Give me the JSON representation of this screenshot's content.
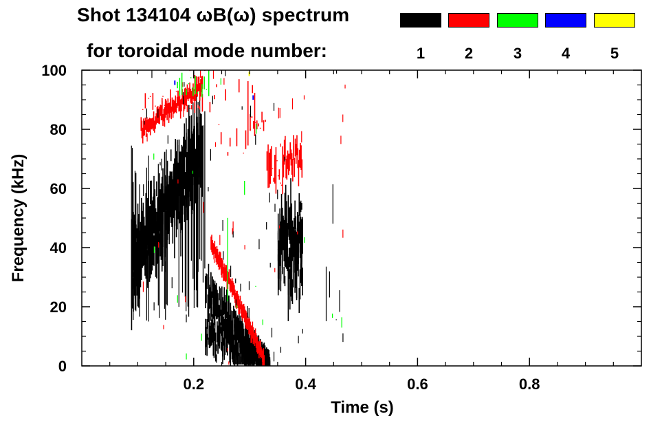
{
  "chart_data": {
    "type": "heatmap",
    "title_line1": "Shot 134104 ωB(ω) spectrum",
    "title_line2": "for toroidal mode number:",
    "xlabel": "Time (s)",
    "ylabel": "Frequency (kHz)",
    "xlim": [
      0.0,
      1.0
    ],
    "ylim": [
      0,
      100
    ],
    "x_ticks": [
      0.2,
      0.4,
      0.6,
      0.8
    ],
    "y_ticks": [
      0,
      20,
      40,
      60,
      80,
      100
    ],
    "legend": [
      {
        "mode": "1",
        "color": "#000000"
      },
      {
        "mode": "2",
        "color": "#ff0000"
      },
      {
        "mode": "3",
        "color": "#00ff00"
      },
      {
        "mode": "4",
        "color": "#0000ff"
      },
      {
        "mode": "5",
        "color": "#ffff00"
      }
    ],
    "regions": [
      {
        "mode": 1,
        "t": [
          0.09,
          0.21
        ],
        "f_low": 15,
        "f_high": 75,
        "note": "broadband, peak ~55-65 kHz"
      },
      {
        "mode": 2,
        "t": [
          0.11,
          0.2
        ],
        "f_low": 80,
        "f_high": 95,
        "note": "chirp ~80 to ~95 kHz"
      },
      {
        "mode": 1,
        "t": [
          0.22,
          0.33
        ],
        "f_low": 0,
        "f_high": 35,
        "note": "sweep ~30 down to ~2 kHz"
      },
      {
        "mode": 2,
        "t": [
          0.23,
          0.32
        ],
        "f_low": 2,
        "f_high": 45,
        "note": "sweep ~42 down to ~3 kHz"
      },
      {
        "mode": 1,
        "t": [
          0.35,
          0.39
        ],
        "f_low": 20,
        "f_high": 65,
        "note": "band ~25-60 kHz"
      },
      {
        "mode": 2,
        "t": [
          0.36,
          0.39
        ],
        "f_low": 60,
        "f_high": 80,
        "note": "band ~62-78 kHz"
      },
      {
        "mode": 3,
        "t": [
          0.17,
          0.22
        ],
        "f_low": 90,
        "f_high": 100,
        "note": "sparse"
      }
    ]
  }
}
